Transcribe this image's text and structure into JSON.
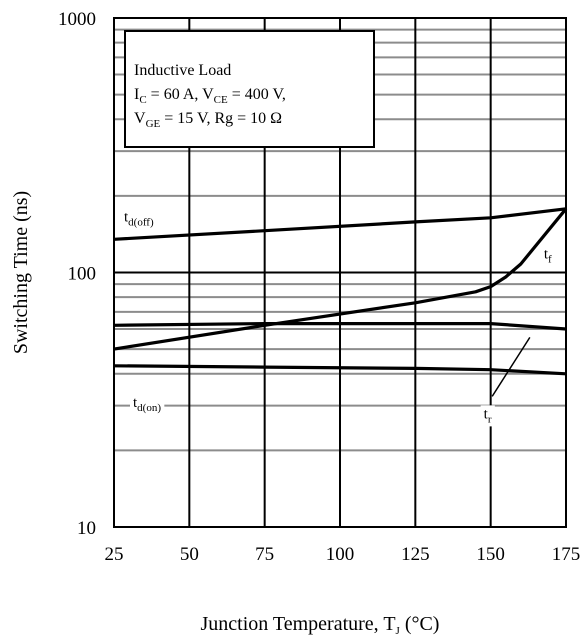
{
  "chart_data": {
    "type": "line",
    "xlabel": {
      "base": "Junction Temperature, T",
      "sub": "J",
      "unit": " (°C)"
    },
    "ylabel": "Switching Time (ns)",
    "xlim": [
      25,
      175
    ],
    "ylim": [
      10,
      1000
    ],
    "yscale": "log",
    "grid": true,
    "x_ticks": [
      25,
      50,
      75,
      100,
      125,
      150,
      175
    ],
    "y_ticks": [
      10,
      100,
      1000
    ],
    "conditions": [
      [
        {
          "t": "Inductive Load"
        }
      ],
      [
        {
          "t": "I"
        },
        {
          "t": "C",
          "sub": true
        },
        {
          "t": " = 60 A, V"
        },
        {
          "t": "CE",
          "sub": true
        },
        {
          "t": " = 400 V,"
        }
      ],
      [
        {
          "t": "V"
        },
        {
          "t": "GE",
          "sub": true
        },
        {
          "t": " = 15 V, Rg = 10 Ω"
        }
      ]
    ],
    "series": [
      {
        "label": {
          "main": "t",
          "sub": "d(off)"
        },
        "label_at": 25,
        "label_side": "above",
        "x": [
          25,
          75,
          125,
          150,
          175
        ],
        "y": [
          135,
          146,
          158,
          164,
          178
        ]
      },
      {
        "label": {
          "main": "t",
          "sub": "f"
        },
        "label_at": 165,
        "label_side": "right",
        "x": [
          25,
          75,
          125,
          145,
          150,
          155,
          160,
          175
        ],
        "y": [
          50,
          62,
          76,
          84,
          88,
          96,
          108,
          178
        ]
      },
      {
        "label": {
          "main": "t",
          "sub": "r"
        },
        "label_at": 163,
        "label_side": "pointer",
        "x": [
          25,
          75,
          125,
          150,
          175
        ],
        "y": [
          62,
          63,
          63,
          63,
          60
        ]
      },
      {
        "label": {
          "main": "t",
          "sub": "d(on)"
        },
        "label_at": 25,
        "label_side": "below",
        "x": [
          25,
          75,
          125,
          150,
          175
        ],
        "y": [
          43,
          42.5,
          42,
          41.5,
          40
        ]
      }
    ]
  }
}
